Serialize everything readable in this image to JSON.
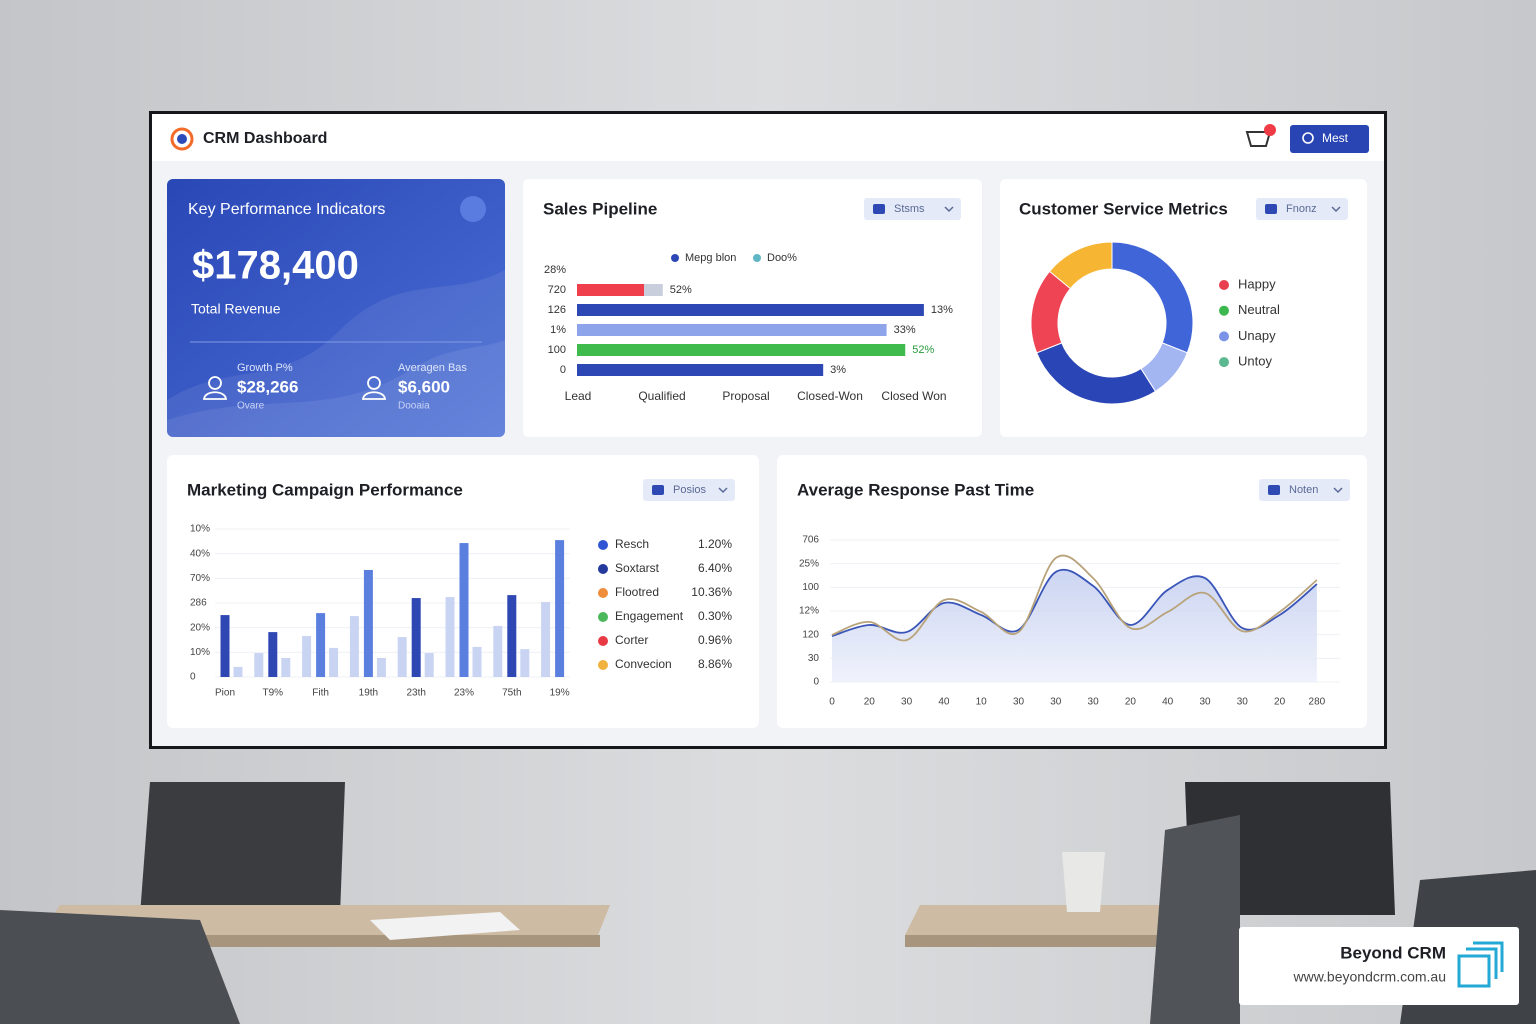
{
  "header": {
    "title": "CRM Dashboard",
    "button": "Mest"
  },
  "kpi": {
    "title": "Key Performance Indicators",
    "value": "$178,400",
    "label": "Total Revenue",
    "stats": [
      {
        "label": "Growth P%",
        "value": "$28,266",
        "note": "Ovare"
      },
      {
        "label": "Averagen Bas",
        "value": "$6,600",
        "note": "Dooaia"
      }
    ]
  },
  "chart_data": [
    {
      "type": "bar",
      "orientation": "horizontal",
      "title": "Sales Pipeline",
      "filter": "Stsms",
      "legend": [
        {
          "name": "Mepg blon",
          "color": "#2d48b5"
        },
        {
          "name": "Doo%",
          "color": "#5fb6c4"
        }
      ],
      "row_labels": [
        "28%",
        "720",
        "126",
        "1%",
        "100",
        "0"
      ],
      "categories": [
        "Lead",
        "Qualified",
        "Proposal",
        "Closed-Won",
        "Closed Won"
      ],
      "xlim": [
        0,
        100
      ],
      "series": [
        {
          "colors": [
            "#ef3f4c",
            "#2d48b5",
            "#8ea4ea",
            "#3fba4c",
            "#2d48b5"
          ],
          "values": [
            18,
            93,
            83,
            88,
            66
          ]
        },
        {
          "color": "#c8cedc",
          "values": [
            5,
            null,
            null,
            null,
            null
          ]
        }
      ],
      "annotations": [
        "52%",
        "13%",
        "33%",
        "52%",
        "3%"
      ]
    },
    {
      "type": "donut",
      "title": "Customer Service Metrics",
      "filter": "Fnonz",
      "values": [
        31,
        10,
        28,
        17,
        14
      ],
      "colors": [
        "#4065d8",
        "#a4b6f2",
        "#2a45b5",
        "#ef4454",
        "#f6b533"
      ],
      "legend": [
        {
          "name": "Happy",
          "color": "#e8404f"
        },
        {
          "name": "Neutral",
          "color": "#3db84e"
        },
        {
          "name": "Unapy",
          "color": "#7b93e6"
        },
        {
          "name": "Untoy",
          "color": "#5cb88e"
        }
      ]
    },
    {
      "type": "grouped-bar",
      "title": "Marketing Campaign Performance",
      "filter": "Posios",
      "categories": [
        "Pion",
        "T9%",
        "Fith",
        "19th",
        "23th",
        "23%",
        "75th",
        "19%"
      ],
      "ylim": [
        0,
        6
      ],
      "yticks": [
        0,
        {
          "value": 1,
          "label": "10%"
        },
        {
          "value": 2,
          "label": "20%"
        },
        {
          "value": 3,
          "label": "286"
        },
        {
          "value": 4,
          "label": "70%"
        },
        {
          "value": 5,
          "label": "40%"
        },
        {
          "value": 6,
          "label": "10%"
        }
      ],
      "grid": true,
      "series": [
        {
          "color": "#c9d4f3",
          "values": [
            null,
            0.97,
            1.66,
            2.47,
            1.62,
            3.24,
            2.07,
            3.04
          ]
        },
        {
          "colors": [
            "#2f47b3",
            "#2f47b3",
            "#5a7fde",
            "#5a7fde",
            "#2f47b3",
            "#5a7fde",
            "#2f47b3",
            "#5a7fde"
          ],
          "values": [
            2.51,
            1.82,
            2.59,
            4.34,
            3.2,
            5.43,
            3.32,
            5.55
          ]
        },
        {
          "color": "#c9d4f3",
          "values": [
            0.41,
            0.77,
            1.18,
            0.77,
            0.97,
            1.22,
            1.13,
            null
          ]
        }
      ],
      "legend": [
        {
          "name": "Resch",
          "color": "#2f55d4",
          "share": "1.20%"
        },
        {
          "name": "Soxtarst",
          "color": "#24399c",
          "share": "6.40%"
        },
        {
          "name": "Flootred",
          "color": "#ef8d3a",
          "share": "10.36%"
        },
        {
          "name": "Engagement",
          "color": "#4bb85a",
          "share": "0.30%"
        },
        {
          "name": "Corter",
          "color": "#e83a45",
          "share": "0.96%"
        },
        {
          "name": "Convecion",
          "color": "#f1b23e",
          "share": "8.86%"
        }
      ]
    },
    {
      "type": "line",
      "title": "Average Response Past Time",
      "filter": "Noten",
      "categories": [
        "0",
        "20",
        "30",
        "40",
        "10",
        "30",
        "30",
        "30",
        "20",
        "40",
        "30",
        "30",
        "20",
        "280"
      ],
      "ylim": [
        0,
        6
      ],
      "yticks": [
        0,
        {
          "value": 1,
          "label": "30"
        },
        {
          "value": 2,
          "label": "120"
        },
        {
          "value": 3,
          "label": "12%"
        },
        {
          "value": 4,
          "label": "100"
        },
        {
          "value": 5,
          "label": "25%"
        },
        {
          "value": 6,
          "label": "706"
        }
      ],
      "grid": true,
      "series": [
        {
          "color": "#3a55b8",
          "area": true,
          "values": [
            1.94,
            2.41,
            2.11,
            3.34,
            2.83,
            2.2,
            4.65,
            4.06,
            2.41,
            3.89,
            4.39,
            2.28,
            2.83,
            4.14
          ]
        },
        {
          "color": "#b8a37a",
          "values": [
            1.99,
            2.54,
            1.77,
            3.46,
            2.96,
            2.11,
            5.24,
            4.39,
            2.28,
            2.96,
            3.76,
            2.15,
            2.96,
            4.31
          ]
        }
      ]
    }
  ],
  "brand": {
    "name": "Beyond CRM",
    "url": "www.beyondcrm.com.au"
  }
}
